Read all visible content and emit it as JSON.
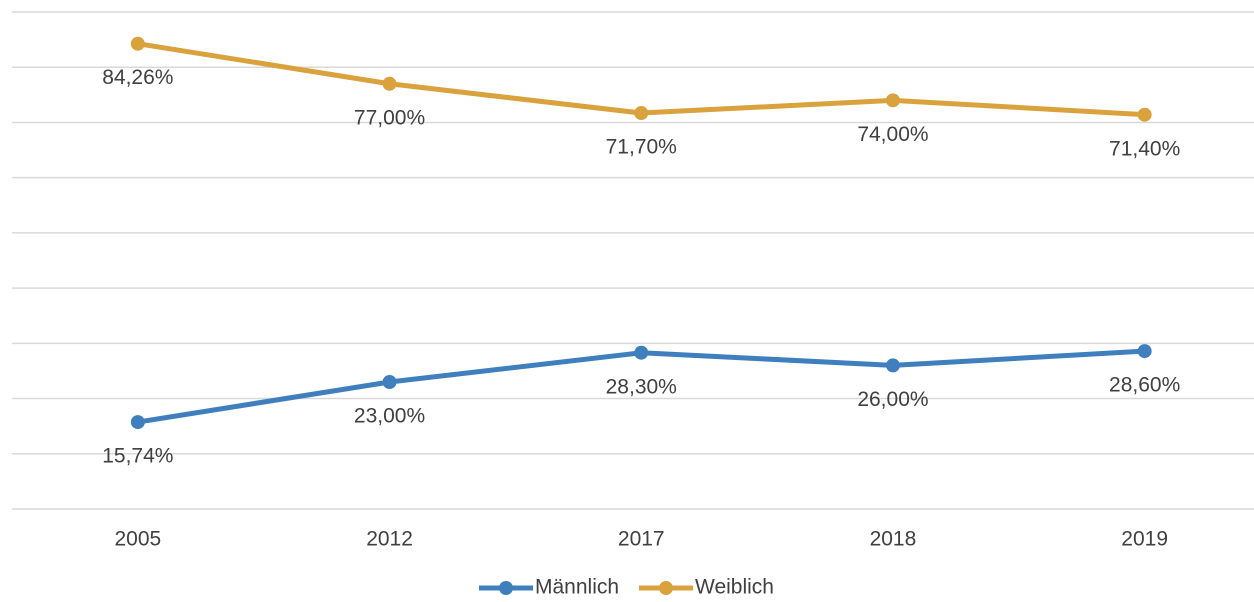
{
  "chart_data": {
    "type": "line",
    "categories": [
      "2005",
      "2012",
      "2017",
      "2018",
      "2019"
    ],
    "series": [
      {
        "name": "Männlich",
        "color": "#3f7fbd",
        "values": [
          15.74,
          23.0,
          28.3,
          26.0,
          28.6
        ],
        "value_labels": [
          "15,74%",
          "23,00%",
          "28,30%",
          "26,00%",
          "28,60%"
        ]
      },
      {
        "name": "Weiblich",
        "color": "#d9a23d",
        "values": [
          84.26,
          77.0,
          71.7,
          74.0,
          71.4
        ],
        "value_labels": [
          "84,26%",
          "77,00%",
          "71,70%",
          "74,00%",
          "71,40%"
        ]
      }
    ],
    "ylim": [
      0,
      90
    ],
    "yticks": [
      0,
      10,
      20,
      30,
      40,
      50,
      60,
      70,
      80,
      90
    ],
    "grid": true,
    "legend": "bottom"
  }
}
